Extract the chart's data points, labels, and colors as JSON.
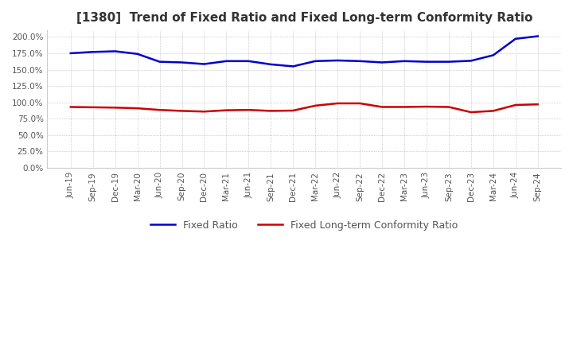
{
  "title": "[1380]  Trend of Fixed Ratio and Fixed Long-term Conformity Ratio",
  "title_fontsize": 11,
  "background_color": "#ffffff",
  "plot_bg_color": "#ffffff",
  "grid_color": "#aaaaaa",
  "x_labels": [
    "Jun-19",
    "Sep-19",
    "Dec-19",
    "Mar-20",
    "Jun-20",
    "Sep-20",
    "Dec-20",
    "Mar-21",
    "Jun-21",
    "Sep-21",
    "Dec-21",
    "Mar-22",
    "Jun-22",
    "Sep-22",
    "Dec-22",
    "Mar-23",
    "Jun-23",
    "Sep-23",
    "Dec-23",
    "Mar-24",
    "Jun-24",
    "Sep-24"
  ],
  "fixed_ratio": [
    175.0,
    177.0,
    178.0,
    174.0,
    162.0,
    161.0,
    158.5,
    163.0,
    163.0,
    158.0,
    155.0,
    163.0,
    164.0,
    163.0,
    161.0,
    163.0,
    162.0,
    162.0,
    163.5,
    172.0,
    197.0,
    201.0
  ],
  "fixed_lt_ratio": [
    93.0,
    92.5,
    92.0,
    91.0,
    88.5,
    87.0,
    86.0,
    88.0,
    88.5,
    87.0,
    87.5,
    95.0,
    98.5,
    98.5,
    93.0,
    93.0,
    93.5,
    93.0,
    85.0,
    87.0,
    96.0,
    97.0
  ],
  "fixed_ratio_color": "#0000cc",
  "fixed_lt_ratio_color": "#cc0000",
  "ylim": [
    0,
    210
  ],
  "yticks": [
    0,
    25,
    50,
    75,
    100,
    125,
    150,
    175,
    200
  ],
  "legend_labels": [
    "Fixed Ratio",
    "Fixed Long-term Conformity Ratio"
  ]
}
